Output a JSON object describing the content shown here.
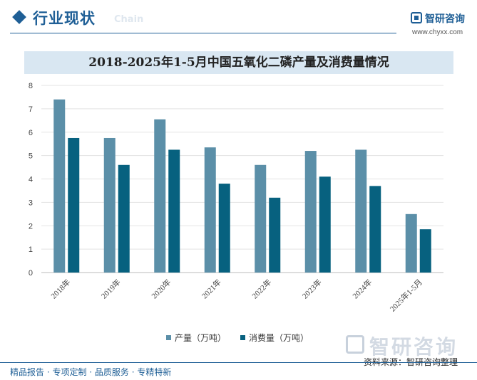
{
  "header": {
    "section_title": "行业现状",
    "section_subtitle": "Chain",
    "brand_name": "智研咨询",
    "brand_url": "www.chyxx.com"
  },
  "chart_data": {
    "type": "bar",
    "title": "2018-2025年1-5月中国五氧化二磷产量及消费量情况",
    "categories": [
      "2018年",
      "2019年",
      "2020年",
      "2021年",
      "2022年",
      "2023年",
      "2024年",
      "2025年1-5月"
    ],
    "series": [
      {
        "name": "产量（万吨）",
        "color": "#5b8fa8",
        "values": [
          7.4,
          5.75,
          6.55,
          5.35,
          4.6,
          5.2,
          5.25,
          2.5
        ]
      },
      {
        "name": "消费量（万吨）",
        "color": "#07617f",
        "values": [
          5.75,
          4.6,
          5.25,
          3.8,
          3.2,
          4.1,
          3.7,
          1.85
        ]
      }
    ],
    "yticks": [
      "0",
      "1",
      "2",
      "3",
      "4",
      "5",
      "6",
      "7",
      "8"
    ],
    "ylim": [
      0,
      8
    ],
    "grid": true,
    "legend_position": "bottom"
  },
  "footer": {
    "tagline": "精品报告 · 专项定制 · 品质服务 · 专精特新",
    "source": "资料来源：智研咨询整理",
    "watermark": "智研咨询"
  }
}
